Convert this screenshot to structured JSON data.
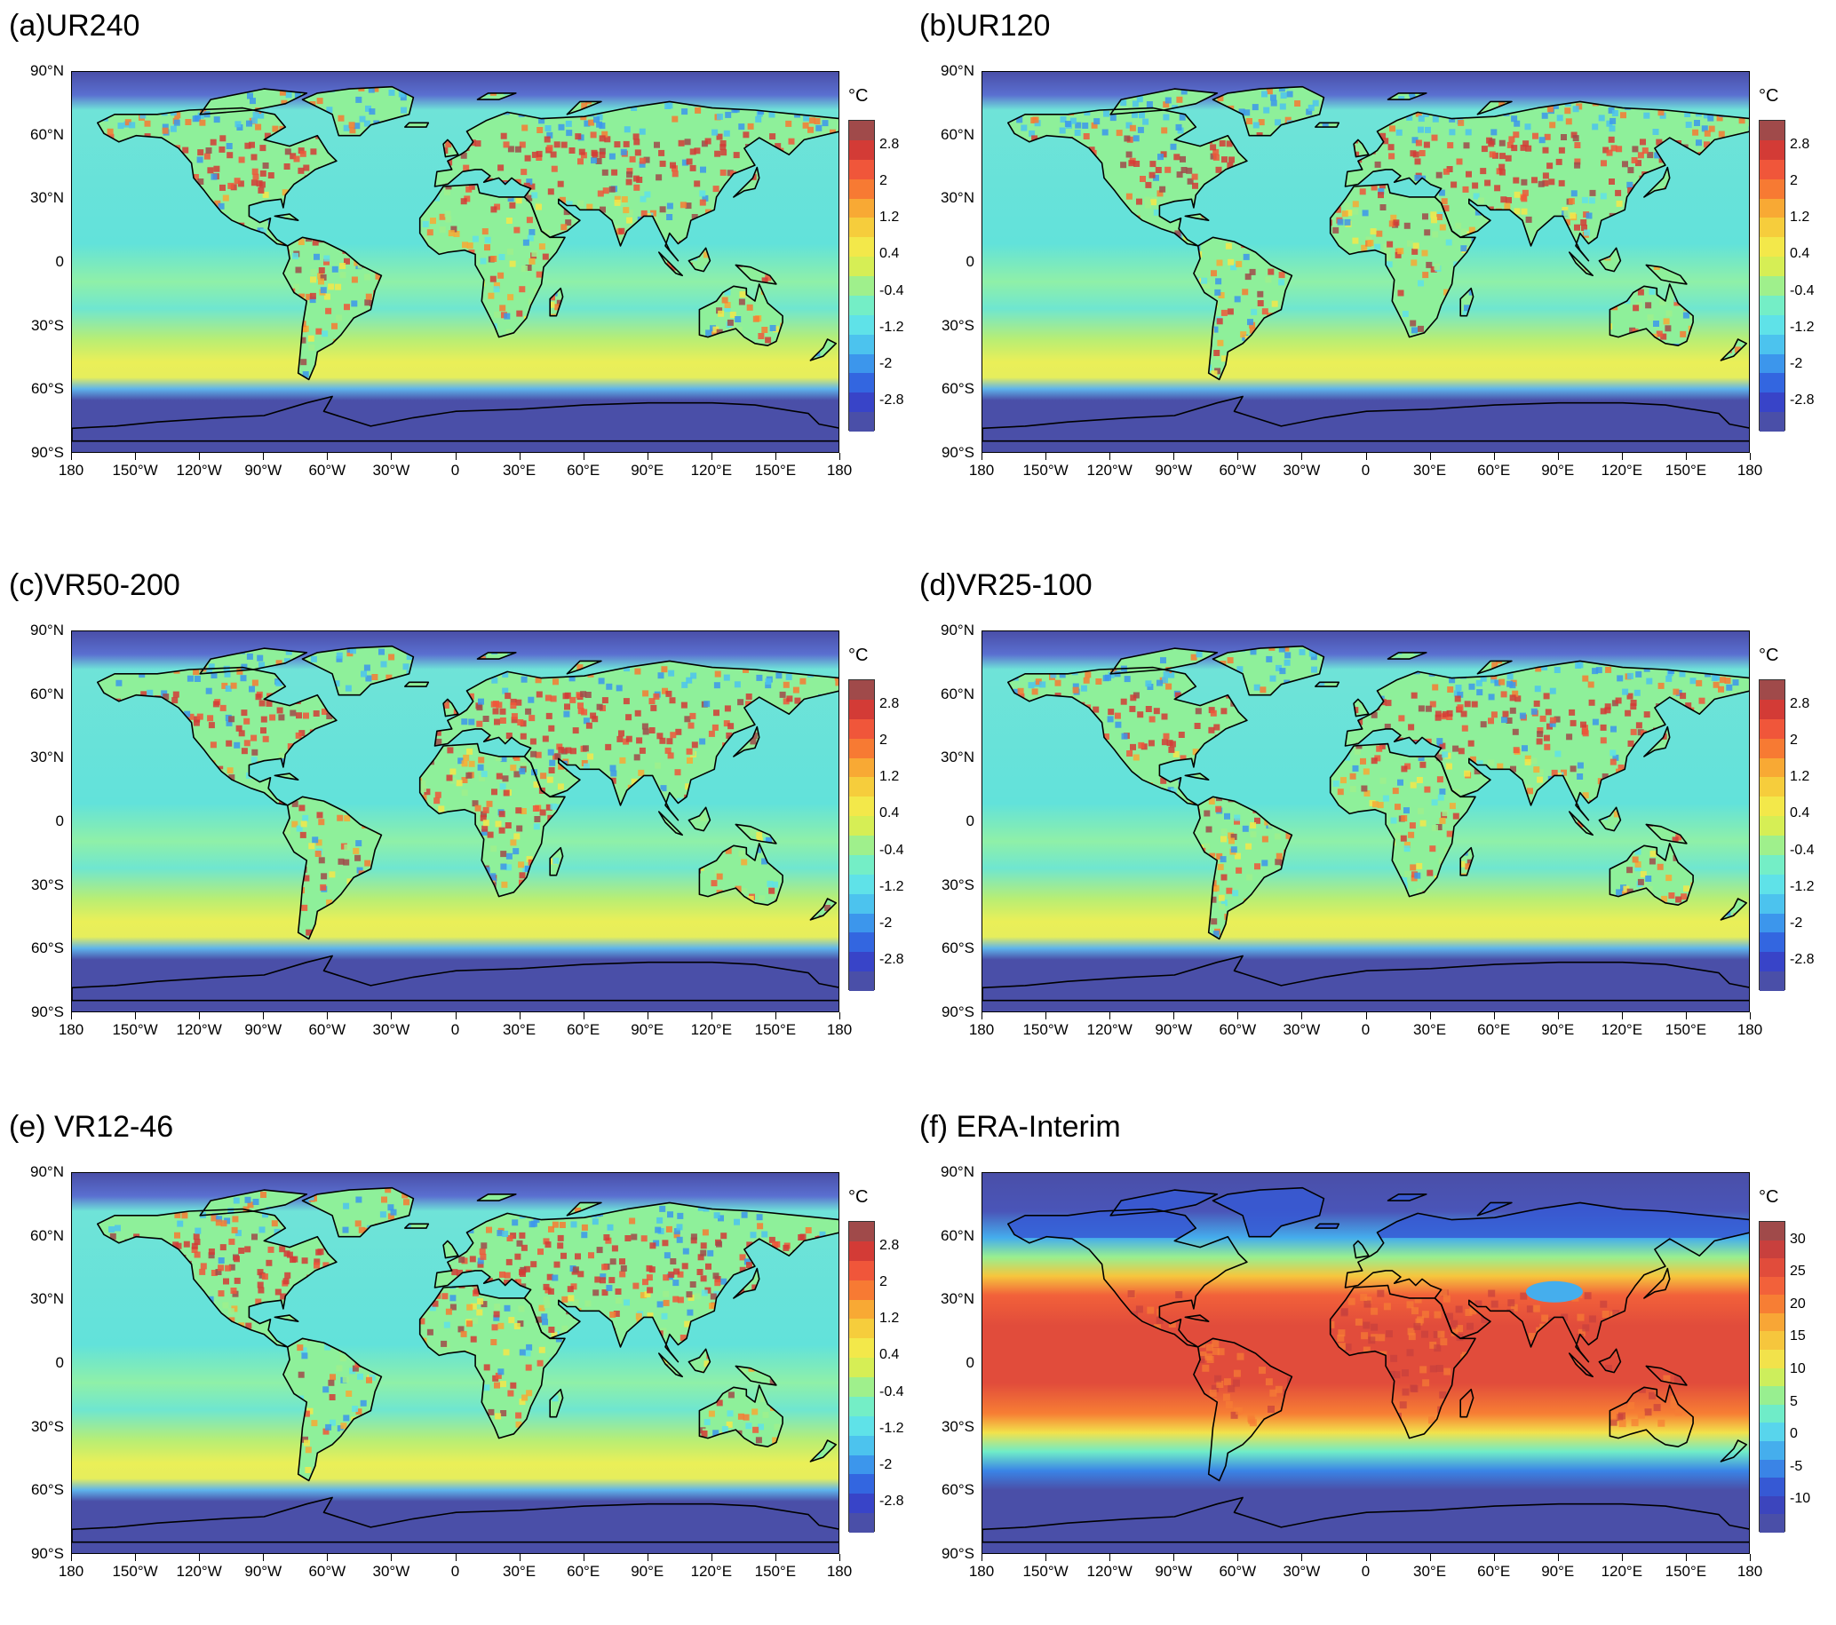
{
  "panels": [
    {
      "id": "a",
      "title": "(a)UR240",
      "kind": "bias"
    },
    {
      "id": "b",
      "title": "(b)UR120",
      "kind": "bias"
    },
    {
      "id": "c",
      "title": "(c)VR50-200",
      "kind": "bias"
    },
    {
      "id": "d",
      "title": "(d)VR25-100",
      "kind": "bias"
    },
    {
      "id": "e",
      "title": "(e) VR12-46",
      "kind": "bias"
    },
    {
      "id": "f",
      "title": "(f) ERA-Interim",
      "kind": "abs"
    }
  ],
  "lat_ticks": [
    "90°N",
    "60°N",
    "30°N",
    "0",
    "30°S",
    "60°S",
    "90°S"
  ],
  "lon_ticks": [
    "180",
    "150°W",
    "120°W",
    "90°W",
    "60°W",
    "30°W",
    "0",
    "30°E",
    "60°E",
    "90°E",
    "120°E",
    "150°E",
    "180"
  ],
  "colorbar_unit": "°C",
  "bias_colorbar": {
    "labels": [
      "2.8",
      "2",
      "1.2",
      "0.4",
      "-0.4",
      "-1.2",
      "-2",
      "-2.8"
    ],
    "colors": [
      "#a04a4a",
      "#d33b36",
      "#f0563a",
      "#f77a33",
      "#f8a934",
      "#f6cd3c",
      "#f3e84a",
      "#d6ee55",
      "#9ff08c",
      "#74eec6",
      "#5fe2e8",
      "#4cc3ee",
      "#3c96ec",
      "#3366e0",
      "#3844c8",
      "#4a4fa8"
    ]
  },
  "abs_colorbar": {
    "labels": [
      "30",
      "25",
      "20",
      "15",
      "10",
      "5",
      "0",
      "-5",
      "-10"
    ],
    "colors": [
      "#a04a4a",
      "#c8403d",
      "#e14c3b",
      "#f2613a",
      "#f77e34",
      "#f8a636",
      "#f6c63d",
      "#f2e24b",
      "#cdee5c",
      "#98ef90",
      "#6fecc8",
      "#58d5ec",
      "#45aeed",
      "#3a84e6",
      "#3659d4",
      "#3c45bd",
      "#4a4fa8"
    ]
  },
  "colors": {
    "ocean_bias": "#56e0d6",
    "ocean_bias_alt": "#7ee8c8",
    "southern_band": "#e8ef5a",
    "antarctic": "#4a4fa8",
    "land_warm": "#f07a3a",
    "land_hot": "#c84038",
    "land_neutral": "#9cf08e",
    "land_cool": "#3c86e8",
    "coast": "#000000"
  }
}
